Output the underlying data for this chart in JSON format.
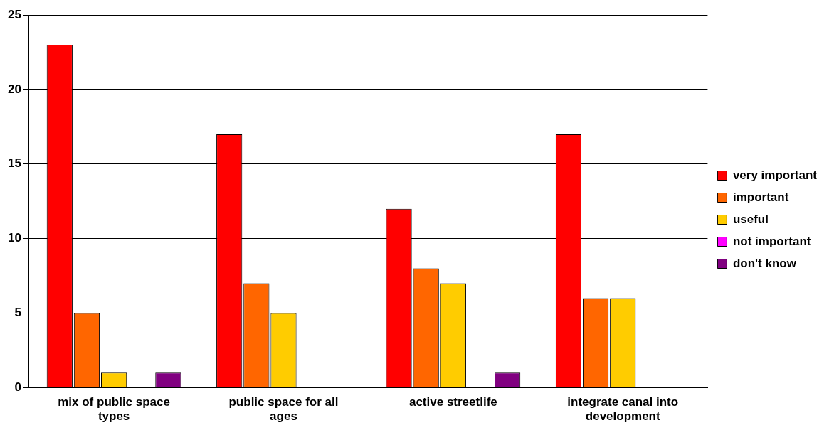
{
  "chart_data": {
    "type": "bar",
    "categories": [
      "mix of public space types",
      "public space for all ages",
      "active streetlife",
      "integrate canal into development"
    ],
    "series": [
      {
        "name": "very important",
        "color": "#ff0000",
        "values": [
          23,
          17,
          12,
          17
        ]
      },
      {
        "name": "important",
        "color": "#ff6600",
        "values": [
          5,
          7,
          8,
          6
        ]
      },
      {
        "name": "useful",
        "color": "#ffcc00",
        "values": [
          1,
          5,
          7,
          6
        ]
      },
      {
        "name": "not important",
        "color": "#ff00ff",
        "values": [
          0,
          0,
          0,
          0
        ]
      },
      {
        "name": "don't know",
        "color": "#800080",
        "values": [
          1,
          0,
          1,
          0
        ]
      }
    ],
    "ylim": [
      0,
      25
    ],
    "yticks": [
      0,
      5,
      10,
      15,
      20,
      25
    ],
    "grid": "y",
    "legend": "right"
  }
}
